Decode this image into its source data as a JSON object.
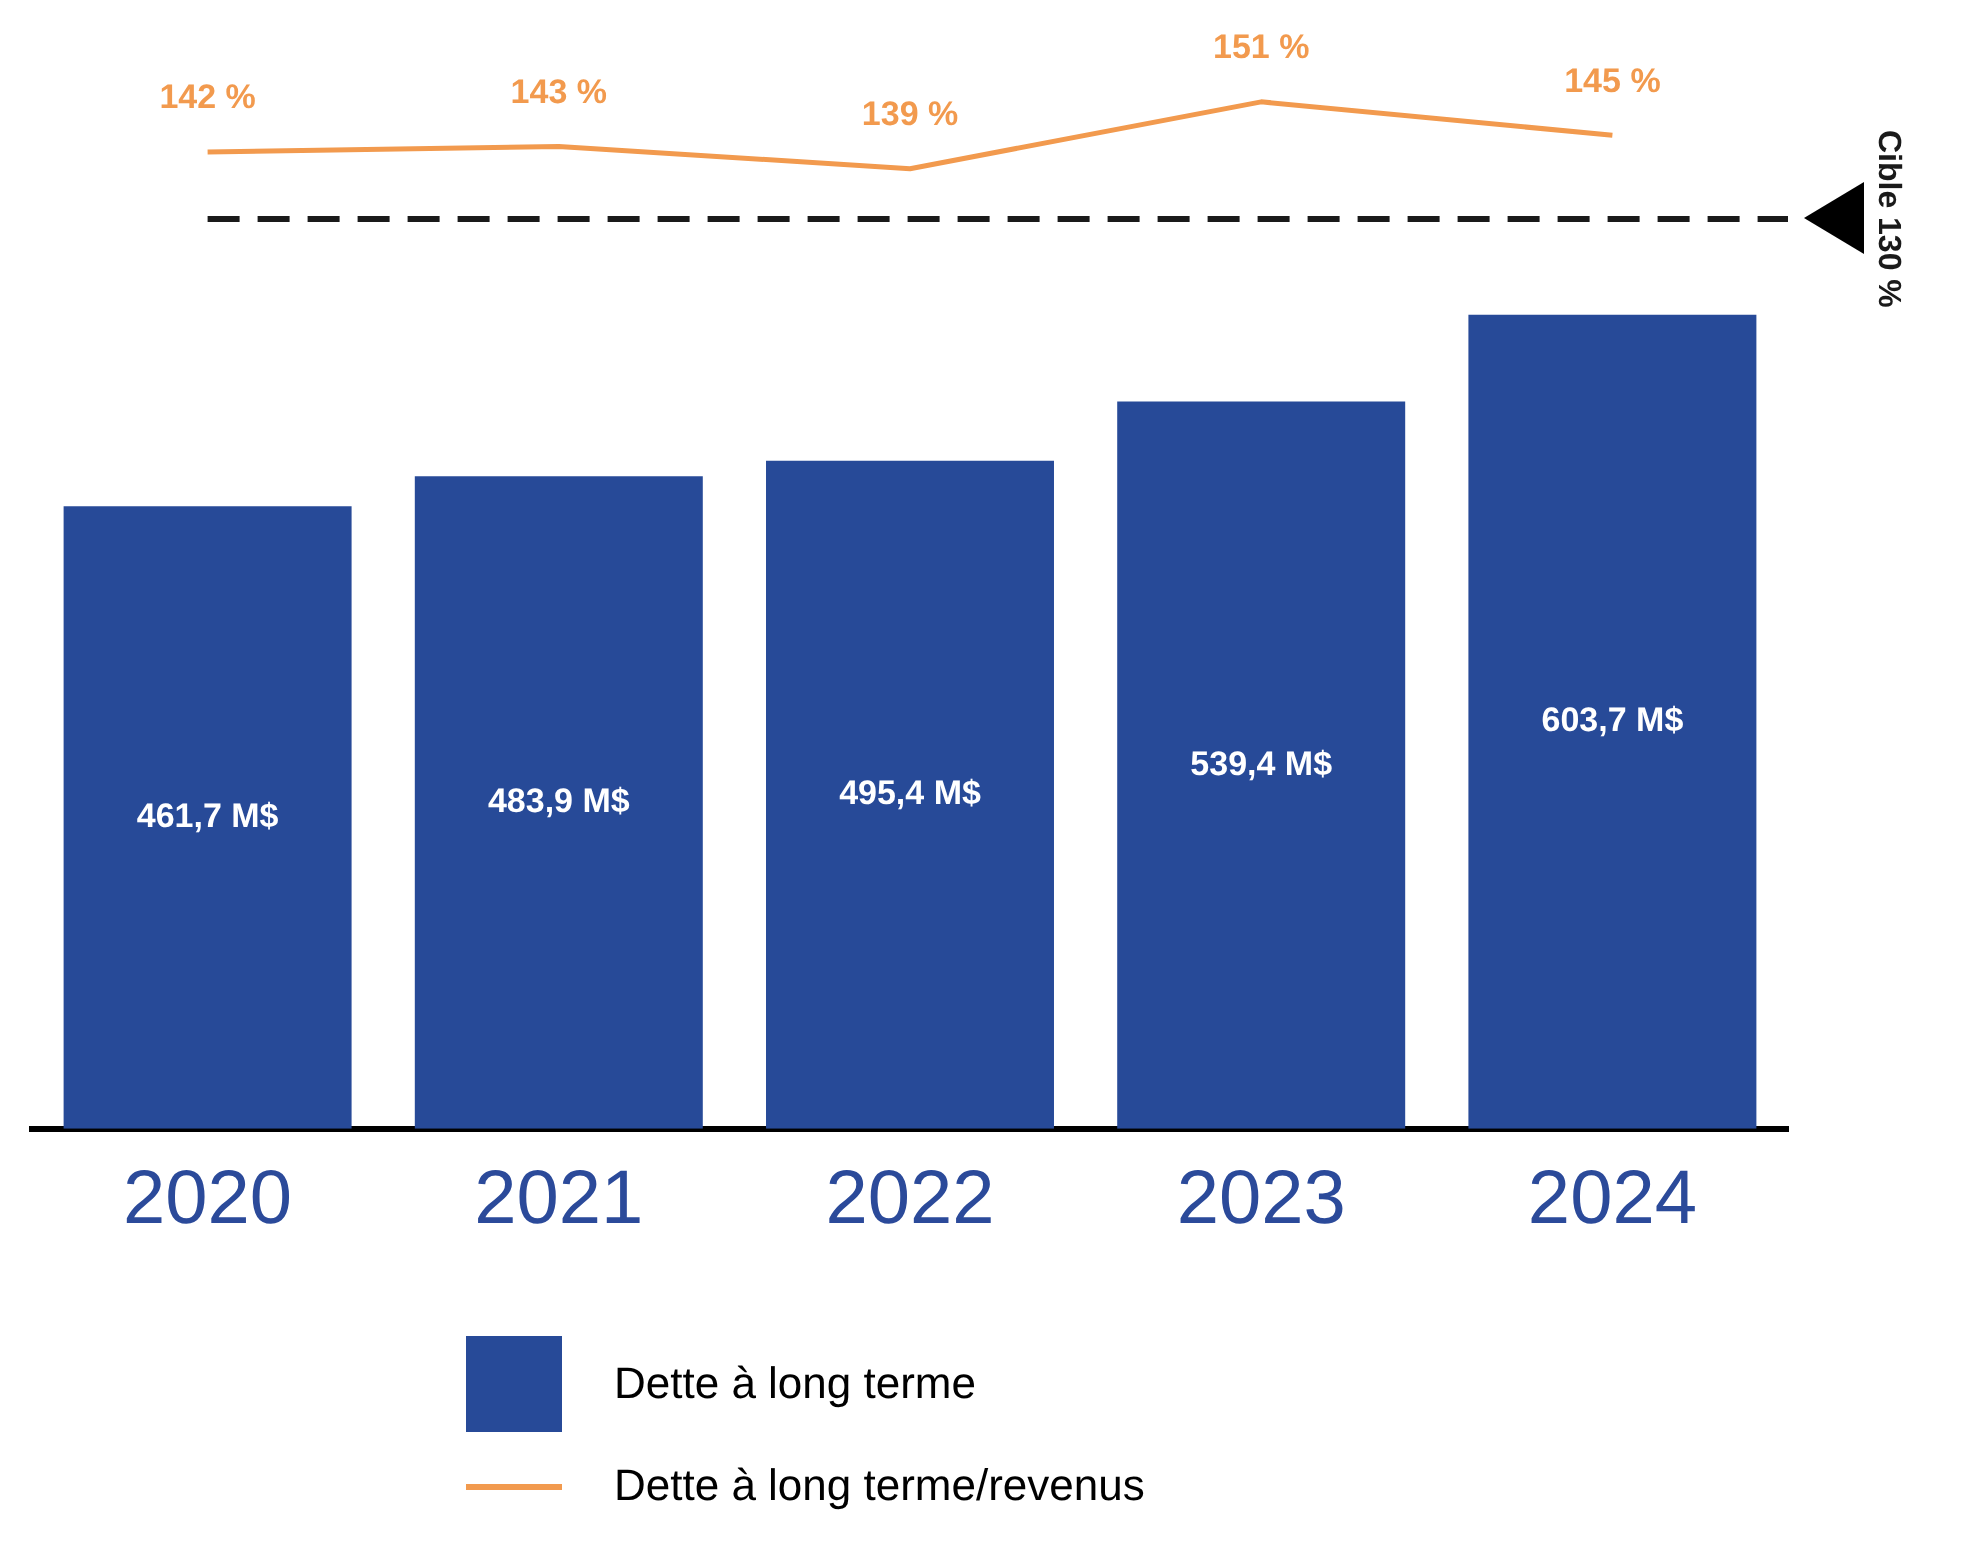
{
  "chart_data": [
    {
      "type": "line",
      "categories": [
        "2020",
        "2021",
        "2022",
        "2023",
        "2024"
      ],
      "series": [
        {
          "name": "Dette à long terme/revenus",
          "color": "#f29a4e",
          "values": [
            142,
            143,
            139,
            151,
            145
          ],
          "value_labels": [
            "142 %",
            "143 %",
            "139 %",
            "151 %",
            "145 %"
          ]
        }
      ],
      "marker": "none",
      "ref_lines": [
        {
          "axis": "y",
          "value": 130,
          "label": "Cible 130 %",
          "color": "#1a1a1a",
          "line_style": "dashed"
        }
      ],
      "legend": "bottom",
      "tick_labels": false
    },
    {
      "type": "bar",
      "categories": [
        "2020",
        "2021",
        "2022",
        "2023",
        "2024"
      ],
      "series": [
        {
          "name": "Dette à long terme",
          "color": "#274a98",
          "values": [
            461.7,
            483.9,
            495.4,
            539.4,
            603.7
          ],
          "value_labels": [
            "461,7 M$",
            "483,9 M$",
            "495,4 M$",
            "539,4 M$",
            "603,7 M$"
          ]
        }
      ],
      "legend": "bottom",
      "tick_labels": "x"
    }
  ]
}
